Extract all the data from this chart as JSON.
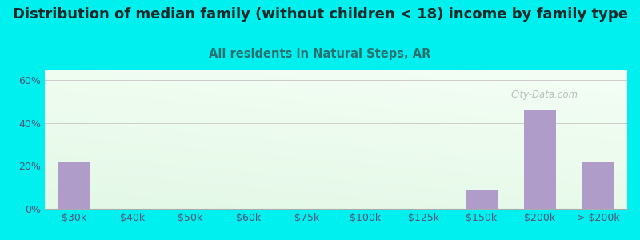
{
  "title": "Distribution of median family (without children < 18) income by family type",
  "subtitle": "All residents in Natural Steps, AR",
  "categories": [
    "$30k",
    "$40k",
    "$50k",
    "$60k",
    "$75k",
    "$100k",
    "$125k",
    "$150k",
    "$200k",
    "> $200k"
  ],
  "values": [
    22.2,
    0,
    0,
    0,
    0,
    0,
    0,
    9.1,
    46.2,
    22.2
  ],
  "bar_color": "#b09cc8",
  "background_color": "#00efef",
  "title_color": "#1a2a2a",
  "subtitle_color": "#2a7070",
  "axis_tick_color": "#555577",
  "yticks": [
    0,
    20,
    40,
    60
  ],
  "ylim": [
    0,
    65
  ],
  "title_fontsize": 13,
  "subtitle_fontsize": 10.5,
  "tick_fontsize": 9
}
